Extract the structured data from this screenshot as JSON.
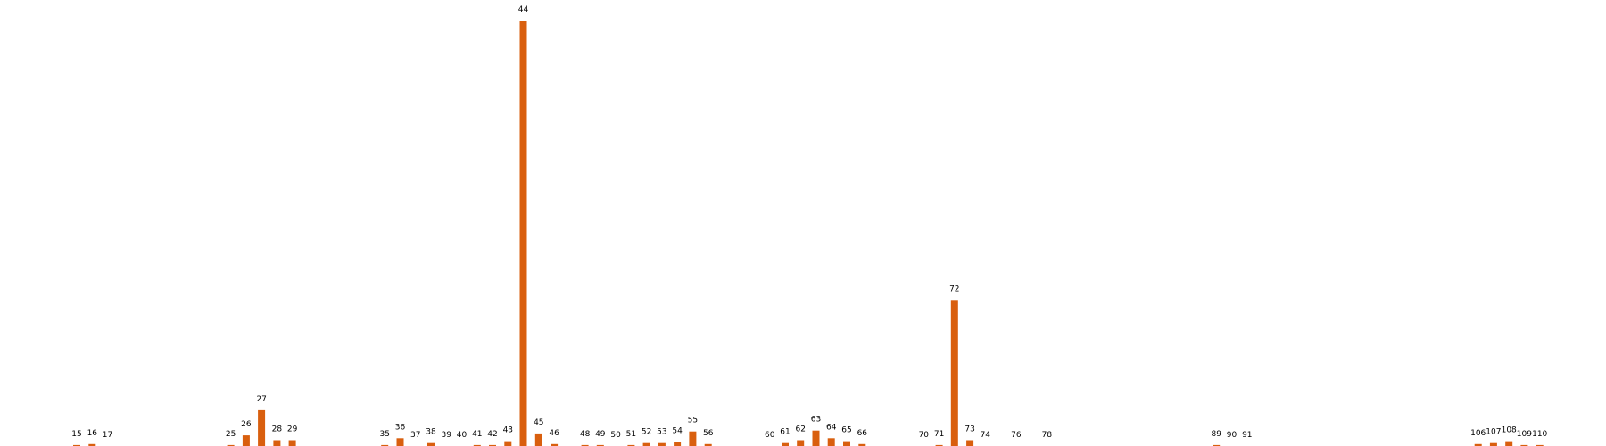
{
  "chart_data": {
    "type": "bar",
    "bar_color": "#d95f0e",
    "title": "",
    "xlabel": "",
    "ylabel": "",
    "x_range": [
      7,
      114
    ],
    "ylim": [
      0,
      440
    ],
    "grid": false,
    "legend": "none",
    "categories": [
      "15",
      "16",
      "17",
      "25",
      "26",
      "27",
      "28",
      "29",
      "35",
      "36",
      "37",
      "38",
      "39",
      "40",
      "41",
      "42",
      "43",
      "44",
      "45",
      "46",
      "48",
      "49",
      "50",
      "51",
      "52",
      "53",
      "54",
      "55",
      "56",
      "60",
      "61",
      "62",
      "63",
      "64",
      "65",
      "66",
      "70",
      "71",
      "72",
      "73",
      "74",
      "76",
      "78",
      "89",
      "90",
      "91",
      "106",
      "107",
      "108",
      "109",
      "110"
    ],
    "values": [
      1,
      2,
      0,
      1,
      11,
      37,
      6,
      6,
      1,
      8,
      0,
      3,
      0,
      0,
      1,
      1,
      5,
      440,
      13,
      2,
      1,
      1,
      0,
      1,
      3,
      3,
      4,
      15,
      2,
      0,
      3,
      6,
      16,
      8,
      5,
      2,
      0,
      1,
      151,
      6,
      0,
      0,
      0,
      1,
      0,
      0,
      2,
      3,
      5,
      1,
      1
    ]
  }
}
